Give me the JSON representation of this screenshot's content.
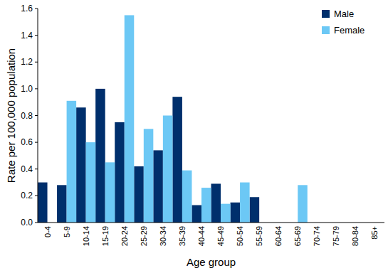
{
  "chart_data": {
    "type": "bar",
    "y_label": "Rate per 100,000 population",
    "x_label": "Age group",
    "categories": [
      "0-4",
      "5-9",
      "10-14",
      "15-19",
      "20-24",
      "25-29",
      "30-34",
      "35-39",
      "40-44",
      "45-49",
      "50-54",
      "55-59",
      "60-64",
      "65-69",
      "70-74",
      "75-79",
      "80-84",
      "85+"
    ],
    "series": [
      {
        "name": "Male",
        "color": "#002f6c",
        "values": [
          0.3,
          0.28,
          0.86,
          1.0,
          0.75,
          0.42,
          0.54,
          0.94,
          0.13,
          0.29,
          0.15,
          0.19,
          0,
          0,
          0,
          0,
          0,
          0
        ]
      },
      {
        "name": "Female",
        "color": "#6cc8f5",
        "values": [
          0,
          0.91,
          0.6,
          0.45,
          1.55,
          0.7,
          0.8,
          0.39,
          0.26,
          0.14,
          0.3,
          0,
          0,
          0.28,
          0,
          0,
          0,
          0
        ]
      }
    ],
    "ylim": [
      0,
      1.6
    ],
    "yticks": [
      {
        "value": 0,
        "label": "0.0"
      },
      0.2,
      0.4,
      0.6,
      0.8,
      {
        "value": 1,
        "label": "1.0"
      },
      1.2,
      1.4,
      1.6
    ],
    "grid": false,
    "legend": "top-right"
  }
}
